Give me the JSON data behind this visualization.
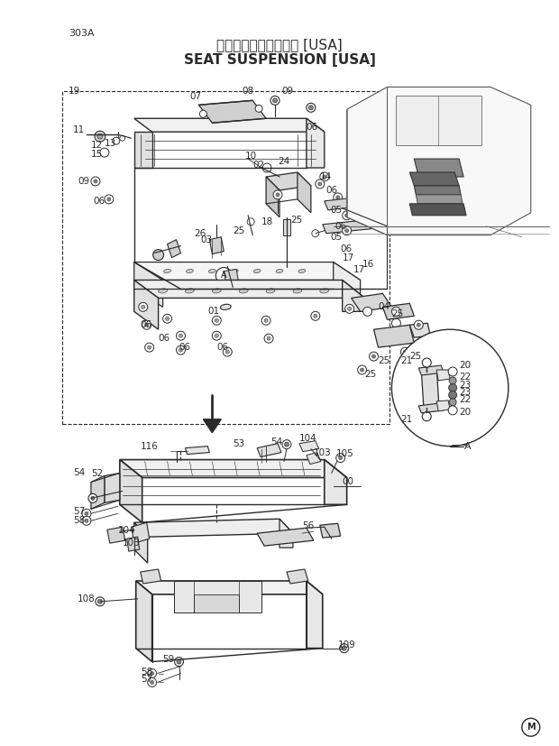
{
  "title_japanese": "シートサスペンション [USA]",
  "title_english": "SEAT SUSPENSION [USA]",
  "page_number": "303A",
  "page_marker": "M",
  "bg_color": "#ffffff",
  "line_color": "#2a2a2a",
  "fig_width": 6.2,
  "fig_height": 8.27,
  "dpi": 100
}
